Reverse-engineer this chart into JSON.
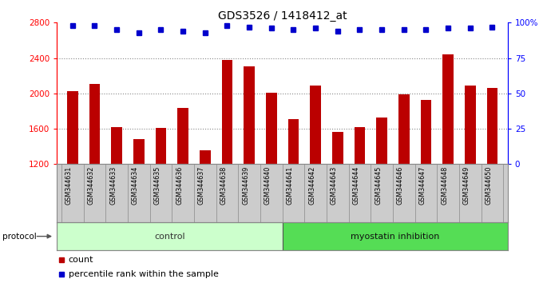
{
  "title": "GDS3526 / 1418412_at",
  "samples": [
    "GSM344631",
    "GSM344632",
    "GSM344633",
    "GSM344634",
    "GSM344635",
    "GSM344636",
    "GSM344637",
    "GSM344638",
    "GSM344639",
    "GSM344640",
    "GSM344641",
    "GSM344642",
    "GSM344643",
    "GSM344644",
    "GSM344645",
    "GSM344646",
    "GSM344647",
    "GSM344648",
    "GSM344649",
    "GSM344650"
  ],
  "bar_values": [
    2030,
    2110,
    1620,
    1480,
    1610,
    1840,
    1360,
    2380,
    2310,
    2010,
    1710,
    2090,
    1560,
    1620,
    1730,
    1990,
    1930,
    2440,
    2090,
    2060
  ],
  "percentile_values": [
    98,
    98,
    95,
    93,
    95,
    94,
    93,
    98,
    97,
    96,
    95,
    96,
    94,
    95,
    95,
    95,
    95,
    96,
    96,
    97
  ],
  "bar_color": "#bb0000",
  "percentile_color": "#0000cc",
  "ylim_left": [
    1200,
    2800
  ],
  "ylim_right": [
    0,
    100
  ],
  "yticks_left": [
    1200,
    1600,
    2000,
    2400,
    2800
  ],
  "yticks_right": [
    0,
    25,
    50,
    75,
    100
  ],
  "control_count": 10,
  "myostatin_count": 10,
  "control_color": "#ccffcc",
  "myostatin_color": "#55dd55",
  "protocol_label": "protocol",
  "control_label": "control",
  "myostatin_label": "myostatin inhibition",
  "legend_count_label": "count",
  "legend_percentile_label": "percentile rank within the sample",
  "xtick_bg_color": "#cccccc",
  "title_fontsize": 10,
  "tick_fontsize": 7.5,
  "bar_width": 0.5
}
